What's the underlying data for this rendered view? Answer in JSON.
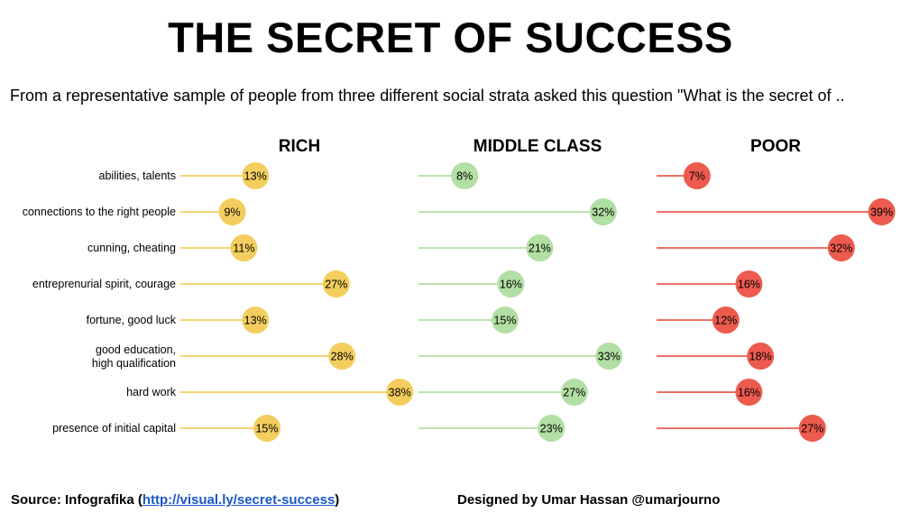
{
  "header": {
    "title": "THE SECRET OF SUCCESS",
    "subtitle": "From a representative sample of people from three different social strata asked this question \"What is the secret of .."
  },
  "footer": {
    "source_prefix": "Source: Infografika (",
    "source_link": "http://visual.ly/secret-success",
    "source_suffix": ")",
    "designer": "Designed by Umar Hassan @umarjourno"
  },
  "colors": {
    "rich": "#f3ce5e",
    "middle_class": "#b2dfa3",
    "poor": "#ec5b4e"
  },
  "chart_data": {
    "type": "lollipop",
    "unit": "%",
    "categories": [
      "abilities, talents",
      "connections to the right people",
      "cunning, cheating",
      "entreprenurial spirit, courage",
      "fortune, good luck",
      "good education, high qualification",
      "hard work",
      "presence of initial capital"
    ],
    "series": [
      {
        "name": "RICH",
        "values": [
          13,
          9,
          11,
          27,
          13,
          28,
          38,
          15
        ]
      },
      {
        "name": "MIDDLE CLASS",
        "values": [
          8,
          32,
          21,
          16,
          15,
          33,
          27,
          23
        ]
      },
      {
        "name": "POOR",
        "values": [
          7,
          39,
          32,
          16,
          12,
          18,
          16,
          27
        ]
      }
    ],
    "xlim": [
      0,
      40
    ]
  }
}
